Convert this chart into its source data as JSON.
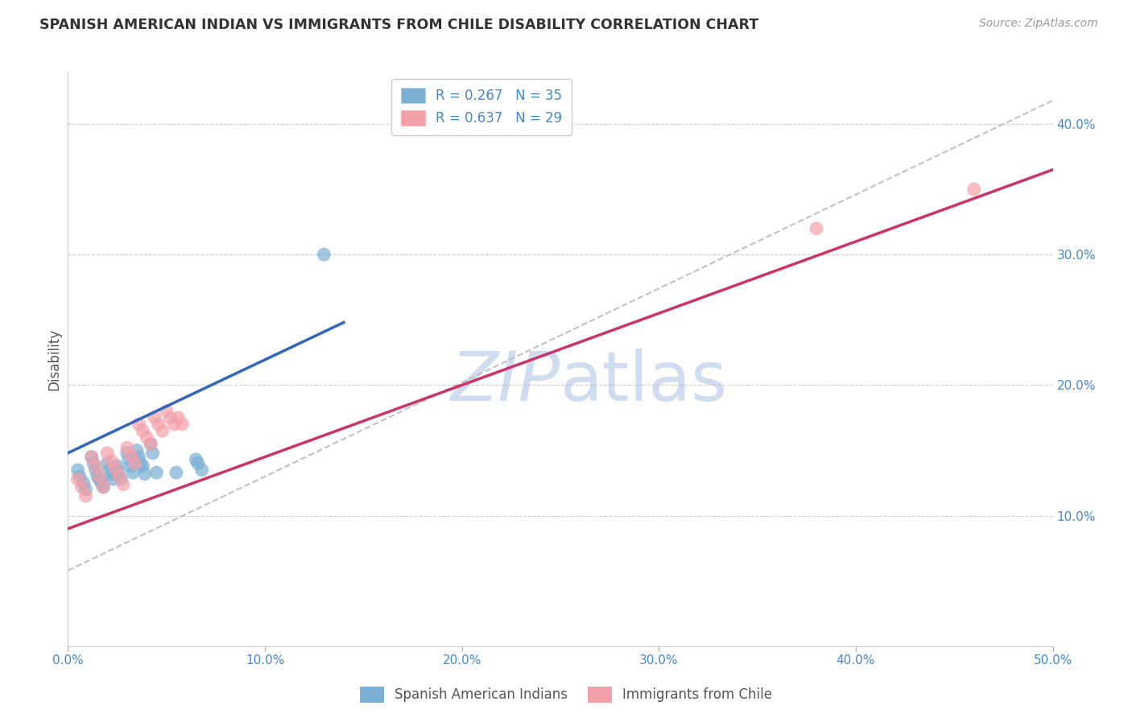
{
  "title": "SPANISH AMERICAN INDIAN VS IMMIGRANTS FROM CHILE DISABILITY CORRELATION CHART",
  "source": "Source: ZipAtlas.com",
  "ylabel": "Disability",
  "xlim": [
    0.0,
    0.5
  ],
  "ylim": [
    0.0,
    0.44
  ],
  "xticks": [
    0.0,
    0.1,
    0.2,
    0.3,
    0.4,
    0.5
  ],
  "yticks": [
    0.1,
    0.2,
    0.3,
    0.4
  ],
  "xtick_labels": [
    "0.0%",
    "10.0%",
    "20.0%",
    "30.0%",
    "40.0%",
    "50.0%"
  ],
  "ytick_labels": [
    "10.0%",
    "20.0%",
    "30.0%",
    "40.0%"
  ],
  "blue_R": 0.267,
  "blue_N": 35,
  "pink_R": 0.637,
  "pink_N": 29,
  "blue_color": "#7BAFD4",
  "pink_color": "#F4A0A8",
  "blue_line_color": "#3366BB",
  "pink_line_color": "#CC3366",
  "gray_dash_color": "#BBBBBB",
  "grid_color": "#BBBBBB",
  "title_color": "#333333",
  "axis_label_color": "#4488CC",
  "legend_R_color": "#4488CC",
  "watermark_color": "#D0DCF0",
  "blue_x": [
    0.005,
    0.006,
    0.008,
    0.009,
    0.012,
    0.013,
    0.014,
    0.015,
    0.016,
    0.017,
    0.018,
    0.02,
    0.021,
    0.022,
    0.023,
    0.025,
    0.026,
    0.027,
    0.03,
    0.031,
    0.032,
    0.033,
    0.035,
    0.036,
    0.037,
    0.038,
    0.039,
    0.042,
    0.043,
    0.055,
    0.065,
    0.066,
    0.068,
    0.13,
    0.045
  ],
  "blue_y": [
    0.135,
    0.13,
    0.125,
    0.12,
    0.145,
    0.14,
    0.135,
    0.13,
    0.128,
    0.125,
    0.122,
    0.14,
    0.135,
    0.132,
    0.128,
    0.138,
    0.134,
    0.128,
    0.148,
    0.143,
    0.138,
    0.133,
    0.15,
    0.145,
    0.14,
    0.138,
    0.132,
    0.155,
    0.148,
    0.133,
    0.143,
    0.14,
    0.135,
    0.3,
    0.133
  ],
  "pink_x": [
    0.005,
    0.007,
    0.009,
    0.012,
    0.014,
    0.016,
    0.018,
    0.02,
    0.022,
    0.024,
    0.026,
    0.028,
    0.03,
    0.032,
    0.034,
    0.036,
    0.038,
    0.04,
    0.042,
    0.044,
    0.046,
    0.048,
    0.05,
    0.052,
    0.054,
    0.056,
    0.058,
    0.38,
    0.46
  ],
  "pink_y": [
    0.128,
    0.122,
    0.115,
    0.145,
    0.138,
    0.13,
    0.122,
    0.148,
    0.142,
    0.136,
    0.13,
    0.124,
    0.152,
    0.146,
    0.14,
    0.17,
    0.165,
    0.16,
    0.155,
    0.175,
    0.17,
    0.165,
    0.18,
    0.175,
    0.17,
    0.175,
    0.17,
    0.32,
    0.35
  ],
  "blue_trend_x": [
    0.0,
    0.14
  ],
  "blue_trend_y": [
    0.148,
    0.248
  ],
  "pink_trend_x": [
    0.0,
    0.5
  ],
  "pink_trend_y": [
    0.09,
    0.365
  ],
  "gray_trend_x": [
    0.0,
    0.5
  ],
  "gray_trend_y": [
    0.058,
    0.418
  ]
}
